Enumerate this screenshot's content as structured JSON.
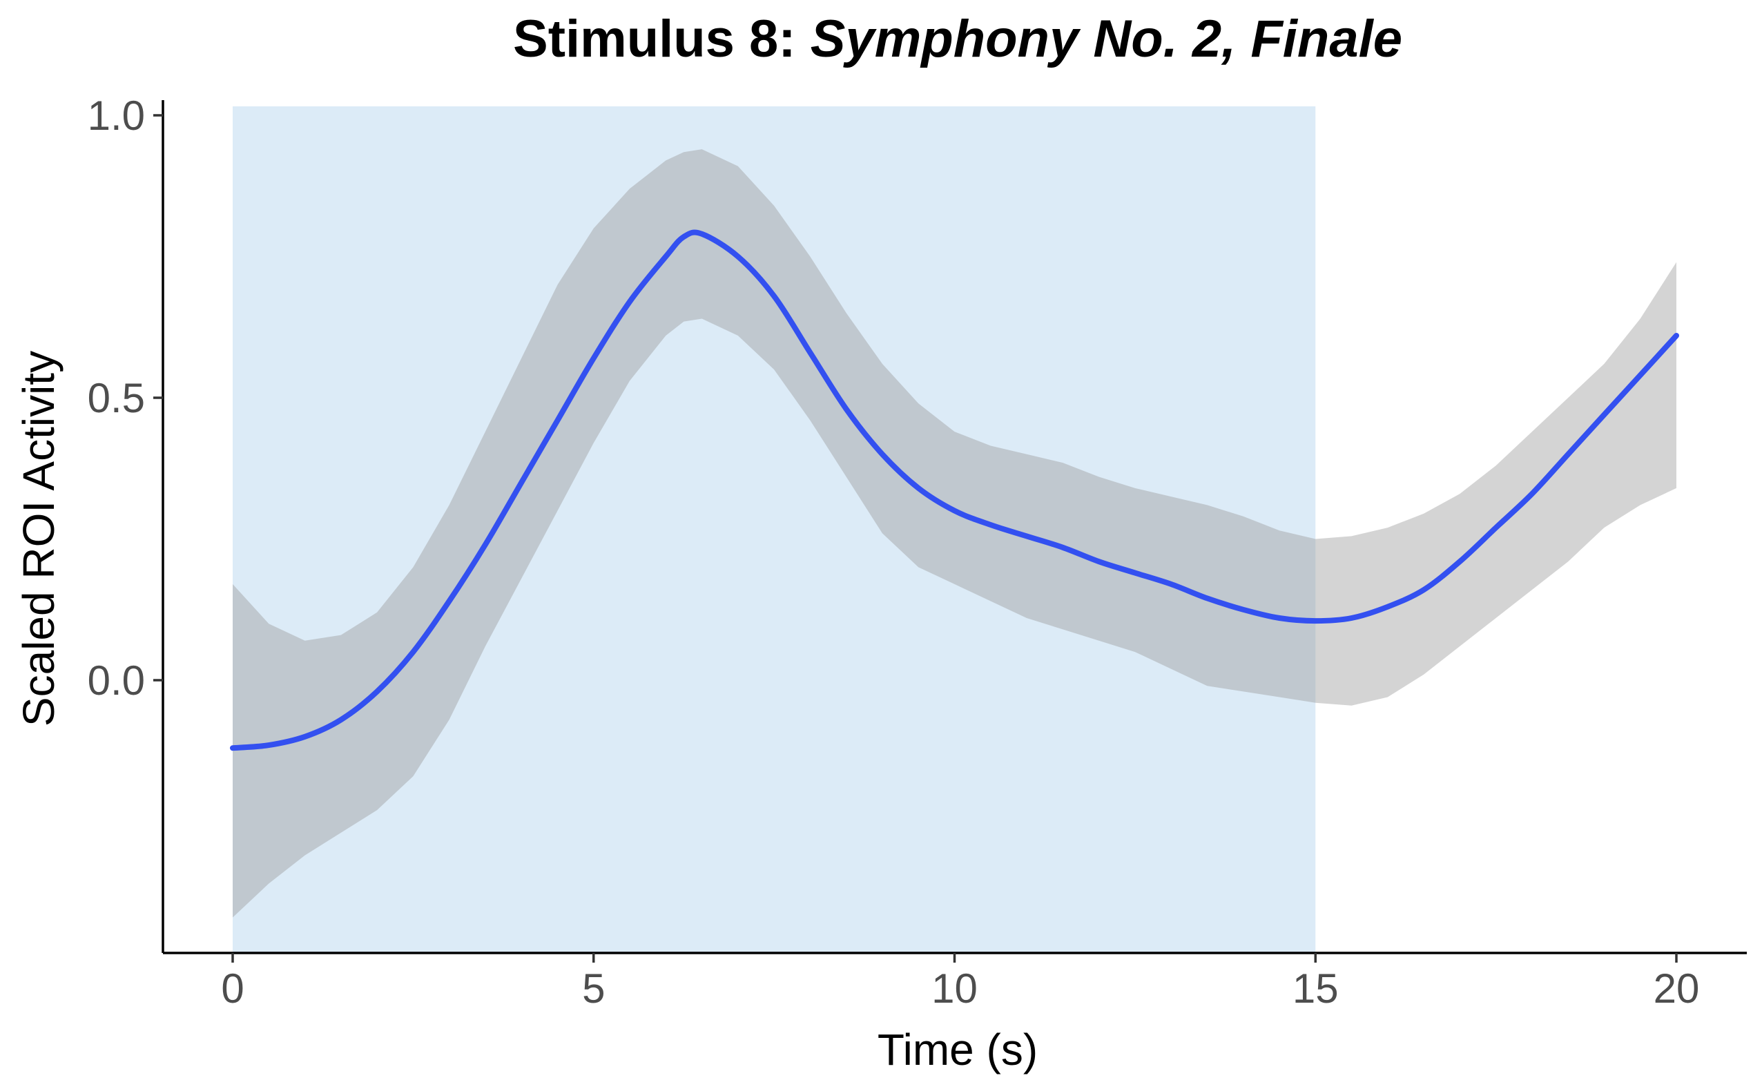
{
  "chart_data": {
    "type": "line",
    "title_prefix": "Stimulus 8: ",
    "title_italic": "Symphony No. 2, Finale",
    "xlabel": "Time (s)",
    "ylabel": "Scaled ROI Activity",
    "xlim": [
      -1,
      21
    ],
    "ylim": [
      -0.48,
      1.02
    ],
    "x_ticks": [
      0,
      5,
      10,
      15,
      20
    ],
    "x_tick_labels": [
      "0",
      "5",
      "10",
      "15",
      "20"
    ],
    "y_ticks": [
      0.0,
      0.5,
      1.0
    ],
    "y_tick_labels": [
      "0.0",
      "0.5",
      "1.0"
    ],
    "grid": false,
    "legend": "none",
    "stimulus_window": [
      0,
      15
    ],
    "series": [
      {
        "x": [
          0,
          0.5,
          1,
          1.5,
          2,
          2.5,
          3,
          3.5,
          4,
          4.5,
          5,
          5.5,
          6,
          6.25,
          6.5,
          7,
          7.5,
          8,
          8.5,
          9,
          9.5,
          10,
          10.5,
          11,
          11.5,
          12,
          12.5,
          13,
          13.5,
          14,
          14.5,
          15,
          15.5,
          16,
          16.5,
          17,
          17.5,
          18,
          18.5,
          19,
          19.5,
          20
        ],
        "y": [
          -0.12,
          -0.115,
          -0.1,
          -0.07,
          -0.02,
          0.05,
          0.14,
          0.24,
          0.35,
          0.46,
          0.57,
          0.67,
          0.75,
          0.785,
          0.79,
          0.75,
          0.68,
          0.58,
          0.48,
          0.4,
          0.34,
          0.3,
          0.275,
          0.255,
          0.235,
          0.21,
          0.19,
          0.17,
          0.145,
          0.125,
          0.11,
          0.105,
          0.11,
          0.13,
          0.16,
          0.21,
          0.27,
          0.33,
          0.4,
          0.47,
          0.54,
          0.61
        ],
        "lower": [
          -0.42,
          -0.36,
          -0.31,
          -0.27,
          -0.23,
          -0.17,
          -0.07,
          0.06,
          0.18,
          0.3,
          0.42,
          0.53,
          0.61,
          0.635,
          0.64,
          0.61,
          0.55,
          0.46,
          0.36,
          0.26,
          0.2,
          0.17,
          0.14,
          0.11,
          0.09,
          0.07,
          0.05,
          0.02,
          -0.01,
          -0.02,
          -0.03,
          -0.04,
          -0.045,
          -0.03,
          0.01,
          0.06,
          0.11,
          0.16,
          0.21,
          0.27,
          0.31,
          0.34
        ],
        "upper": [
          0.17,
          0.1,
          0.07,
          0.08,
          0.12,
          0.2,
          0.31,
          0.44,
          0.57,
          0.7,
          0.8,
          0.87,
          0.92,
          0.935,
          0.94,
          0.91,
          0.84,
          0.75,
          0.65,
          0.56,
          0.49,
          0.44,
          0.415,
          0.4,
          0.385,
          0.36,
          0.34,
          0.325,
          0.31,
          0.29,
          0.265,
          0.25,
          0.255,
          0.27,
          0.295,
          0.33,
          0.38,
          0.44,
          0.5,
          0.56,
          0.64,
          0.74
        ]
      }
    ]
  },
  "colors": {
    "line": "#3350f0",
    "ribbon": "#999999",
    "stimulus_fill": "#dcebf7"
  }
}
